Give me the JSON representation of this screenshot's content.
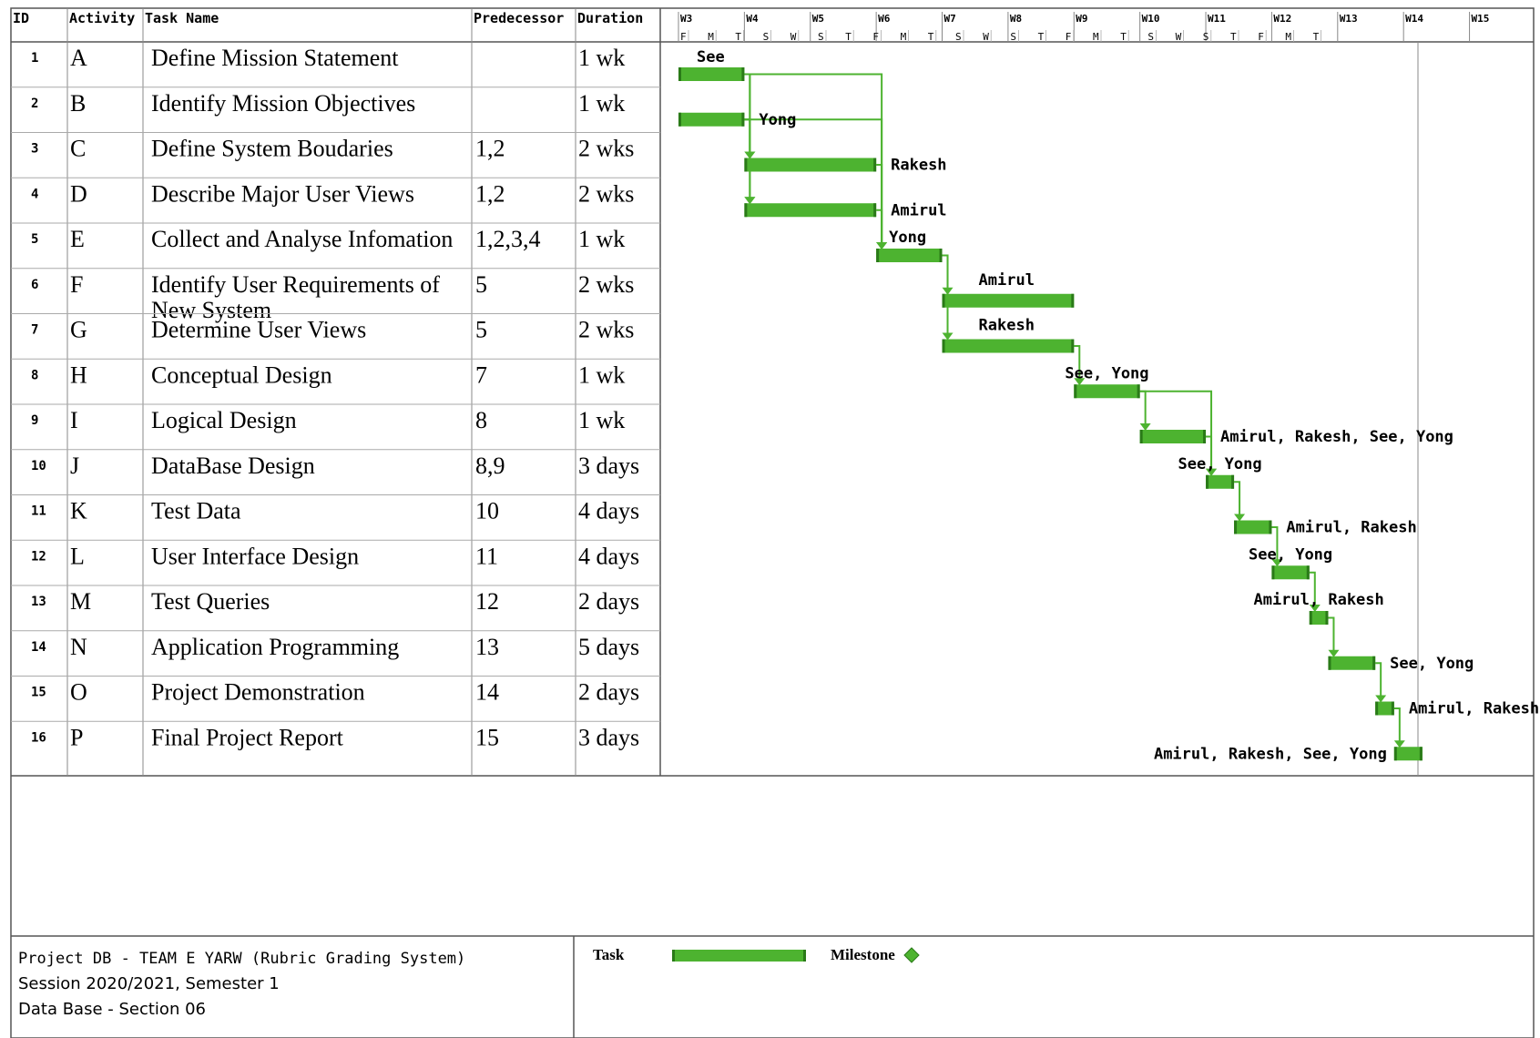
{
  "headers": {
    "id": "ID",
    "activity": "Activity",
    "task_name": "Task Name",
    "predecessor": "Predecessor",
    "duration": "Duration"
  },
  "chart_data": {
    "type": "gantt",
    "weeks": [
      "W3",
      "W4",
      "W5",
      "W6",
      "W7",
      "W8",
      "W9",
      "W10",
      "W11",
      "W12",
      "W13",
      "W14",
      "W15"
    ],
    "day_labels": [
      "F",
      "M",
      "T",
      "S",
      "W",
      "S",
      "T",
      "F",
      "M",
      "T",
      "S",
      "W",
      "S",
      "T",
      "F",
      "M",
      "T",
      "S",
      "W",
      "S",
      "T",
      "F",
      "M",
      "T"
    ],
    "bar_color": "#4db330",
    "tasks": [
      {
        "id": "1",
        "activity": "A",
        "name": "Define Mission Statement",
        "pred": "",
        "duration": "1 wk",
        "start": 0,
        "dur": 7,
        "resource": "See",
        "deps": []
      },
      {
        "id": "2",
        "activity": "B",
        "name": "Identify Mission Objectives",
        "pred": "",
        "duration": "1 wk",
        "start": 0,
        "dur": 7,
        "resource": "Yong",
        "deps": []
      },
      {
        "id": "3",
        "activity": "C",
        "name": "Define System Boudaries",
        "pred": "1,2",
        "duration": "2 wks",
        "start": 7,
        "dur": 14,
        "resource": "Rakesh",
        "deps": [
          1,
          2
        ]
      },
      {
        "id": "4",
        "activity": "D",
        "name": "Describe Major User Views",
        "pred": "1,2",
        "duration": "2 wks",
        "start": 7,
        "dur": 14,
        "resource": "Amirul",
        "deps": [
          1,
          2
        ]
      },
      {
        "id": "5",
        "activity": "E",
        "name": "Collect and Analyse Infomation",
        "pred": "1,2,3,4",
        "duration": "1 wk",
        "start": 21,
        "dur": 7,
        "resource": "Yong",
        "deps": [
          1,
          2,
          3,
          4
        ]
      },
      {
        "id": "6",
        "activity": "F",
        "name": "Identify User Requirements of",
        "name2": "New System",
        "pred": "5",
        "duration": "2 wks",
        "start": 28,
        "dur": 14,
        "resource": "Amirul",
        "deps": [
          5
        ]
      },
      {
        "id": "7",
        "activity": "G",
        "name": "Determine User Views",
        "pred": "5",
        "duration": "2 wks",
        "start": 28,
        "dur": 14,
        "resource": "Rakesh",
        "deps": [
          5
        ]
      },
      {
        "id": "8",
        "activity": "H",
        "name": "Conceptual Design",
        "pred": "7",
        "duration": "1 wk",
        "start": 42,
        "dur": 7,
        "resource": "See, Yong",
        "deps": [
          7
        ]
      },
      {
        "id": "9",
        "activity": "I",
        "name": "Logical Design",
        "pred": "8",
        "duration": "1 wk",
        "start": 49,
        "dur": 7,
        "resource": "Amirul, Rakesh, See, Yong",
        "deps": [
          8
        ]
      },
      {
        "id": "10",
        "activity": "J",
        "name": "DataBase Design",
        "pred": "8,9",
        "duration": "3 days",
        "start": 56,
        "dur": 3,
        "resource": "See, Yong",
        "deps": [
          8,
          9
        ]
      },
      {
        "id": "11",
        "activity": "K",
        "name": "Test Data",
        "pred": "10",
        "duration": "4 days",
        "start": 59,
        "dur": 4,
        "resource": "Amirul, Rakesh",
        "deps": [
          10
        ]
      },
      {
        "id": "12",
        "activity": "L",
        "name": "User Interface Design",
        "pred": "11",
        "duration": "4 days",
        "start": 63,
        "dur": 4,
        "resource": "See, Yong",
        "deps": [
          11
        ]
      },
      {
        "id": "13",
        "activity": "M",
        "name": "Test Queries",
        "pred": "12",
        "duration": "2 days",
        "start": 67,
        "dur": 2,
        "resource": "Amirul, Rakesh",
        "deps": [
          12
        ]
      },
      {
        "id": "14",
        "activity": "N",
        "name": "Application Programming",
        "pred": "13",
        "duration": "5 days",
        "start": 69,
        "dur": 5,
        "resource": "See, Yong",
        "deps": [
          13
        ]
      },
      {
        "id": "15",
        "activity": "O",
        "name": "Project Demonstration",
        "pred": "14",
        "duration": "2 days",
        "start": 74,
        "dur": 2,
        "resource": "Amirul, Rakesh",
        "deps": [
          14
        ]
      },
      {
        "id": "16",
        "activity": "P",
        "name": "Final Project Report",
        "pred": "15",
        "duration": "3 days",
        "start": 76,
        "dur": 3,
        "resource": "Amirul, Rakesh, See, Yong",
        "deps": [
          15
        ]
      }
    ]
  },
  "footer": {
    "line1": "Project DB - TEAM E YARW (Rubric Grading System)",
    "line2": "Session 2020/2021, Semester 1",
    "line3": "Data Base - Section 06"
  },
  "legend": {
    "task": "Task",
    "milestone": "Milestone"
  }
}
